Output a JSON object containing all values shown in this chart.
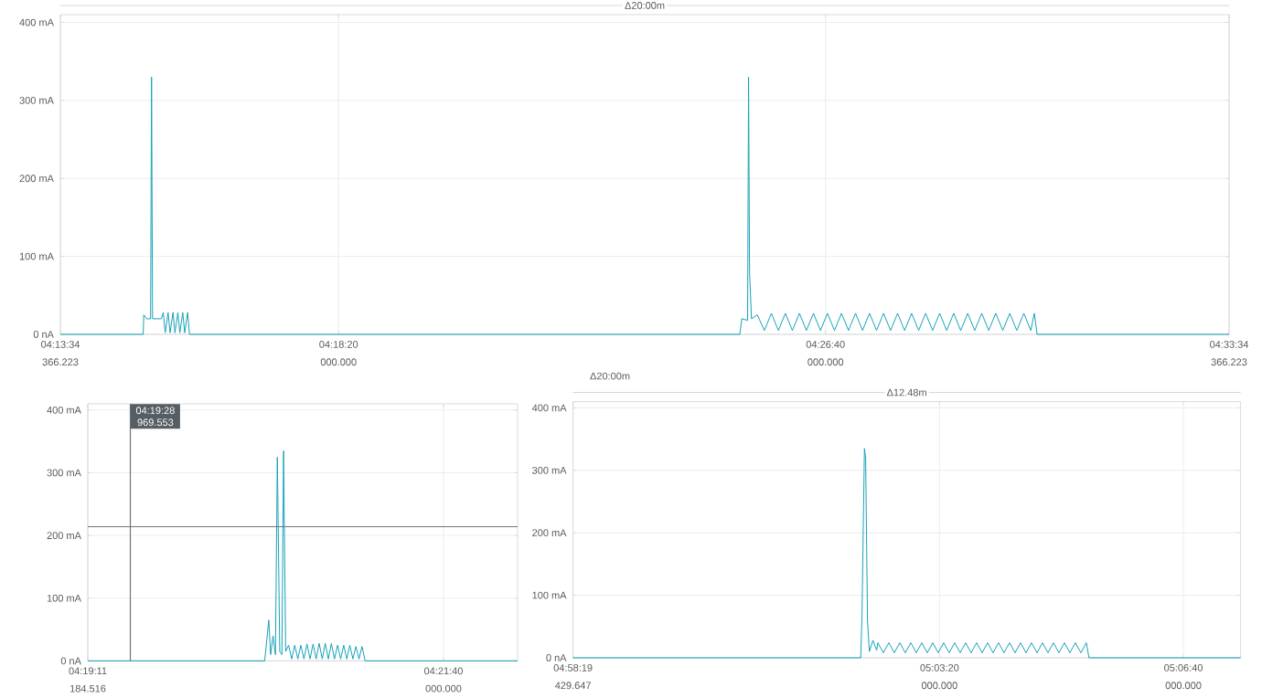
{
  "chart_data": [
    {
      "type": "line",
      "annotations": [
        "Δ20:00m",
        "366.223",
        "000.000",
        "000.000",
        "366.223"
      ],
      "grid": true,
      "xlim": [
        4.226213,
        4.559546
      ],
      "ylim": [
        0,
        410
      ],
      "xticks": [
        {
          "value": 4.226213,
          "label": "04:13:34"
        },
        {
          "value": 4.305556,
          "label": "04:18:20"
        },
        {
          "value": 4.444444,
          "label": "04:26:40"
        },
        {
          "value": 4.559546,
          "label": "04:33:34"
        }
      ],
      "yticks": [
        {
          "value": 0,
          "label": "0 nA"
        },
        {
          "value": 100,
          "label": "100 mA"
        },
        {
          "value": 200,
          "label": "200 mA"
        },
        {
          "value": 300,
          "label": "300 mA"
        },
        {
          "value": 400,
          "label": "400 mA"
        }
      ],
      "series": [
        {
          "color": "#17a2b8",
          "x": [
            4.226213,
            4.24983,
            4.25,
            4.25083,
            4.25194,
            4.25222,
            4.2525,
            4.255,
            4.25556,
            4.25611,
            4.25694,
            4.2575,
            4.25833,
            4.25889,
            4.25972,
            4.26028,
            4.26111,
            4.26167,
            4.2625,
            4.26306,
            4.42,
            4.42056,
            4.42222,
            4.4225,
            4.42278,
            4.42333,
            4.425,
            4.427,
            4.429,
            4.431,
            4.433,
            4.435,
            4.437,
            4.439,
            4.441,
            4.443,
            4.445,
            4.447,
            4.449,
            4.451,
            4.453,
            4.455,
            4.457,
            4.459,
            4.461,
            4.463,
            4.465,
            4.467,
            4.469,
            4.471,
            4.473,
            4.475,
            4.477,
            4.479,
            4.481,
            4.483,
            4.485,
            4.487,
            4.489,
            4.491,
            4.493,
            4.495,
            4.497,
            4.499,
            4.501,
            4.503,
            4.504,
            4.5048,
            4.559546
          ],
          "values": [
            0,
            0,
            25,
            20,
            20,
            330,
            20,
            20,
            28,
            2,
            28,
            2,
            28,
            2,
            28,
            2,
            28,
            2,
            28,
            0,
            0,
            20,
            18,
            330,
            80,
            20,
            25,
            5,
            27,
            5,
            27,
            5,
            27,
            5,
            27,
            5,
            27,
            5,
            27,
            5,
            27,
            5,
            27,
            5,
            27,
            5,
            27,
            5,
            27,
            5,
            27,
            5,
            27,
            5,
            27,
            5,
            27,
            5,
            27,
            5,
            27,
            5,
            27,
            5,
            27,
            5,
            27,
            0,
            0
          ]
        }
      ]
    },
    {
      "type": "line",
      "annotations": [
        "184.516",
        "000.000"
      ],
      "grid": true,
      "xlim": [
        4.319774,
        4.369722
      ],
      "ylim": [
        0,
        410
      ],
      "xticks": [
        {
          "value": 4.319774,
          "label": "04:19:11"
        },
        {
          "value": 4.361111,
          "label": "04:21:40"
        }
      ],
      "yticks": [
        {
          "value": 0,
          "label": "0 nA"
        },
        {
          "value": 100,
          "label": "100 mA"
        },
        {
          "value": 200,
          "label": "200 mA"
        },
        {
          "value": 300,
          "label": "300 mA"
        },
        {
          "value": 400,
          "label": "400 mA"
        }
      ],
      "ref_lines": [
        {
          "axis": "x",
          "value": 4.324714,
          "label": "04:19:28 969.553",
          "color": "#6c757d"
        },
        {
          "axis": "y",
          "value": 214,
          "color": "#6c757d"
        }
      ],
      "series": [
        {
          "color": "#17a2b8",
          "x": [
            4.319774,
            4.34033,
            4.3408,
            4.34102,
            4.3413,
            4.34158,
            4.3418,
            4.34208,
            4.34233,
            4.34252,
            4.34277,
            4.34311,
            4.34347,
            4.34382,
            4.34418,
            4.34453,
            4.34489,
            4.34524,
            4.3456,
            4.34595,
            4.34631,
            4.34666,
            4.34702,
            4.34737,
            4.34773,
            4.34808,
            4.34844,
            4.3488,
            4.34916,
            4.34951,
            4.34987,
            4.35022,
            4.35058,
            4.35093,
            4.35129,
            4.35164,
            4.352,
            4.369722
          ],
          "values": [
            0,
            0,
            65,
            10,
            40,
            10,
            325,
            15,
            10,
            335,
            15,
            25,
            3,
            25,
            3,
            25,
            3,
            27,
            3,
            27,
            3,
            28,
            3,
            28,
            3,
            28,
            3,
            25,
            3,
            25,
            3,
            25,
            3,
            23,
            3,
            23,
            0,
            0
          ]
        }
      ]
    },
    {
      "type": "line",
      "annotations": [
        "Δ20:00m",
        "Δ12.48m",
        "429.647",
        "000.000",
        "000.000"
      ],
      "grid": true,
      "xlim": [
        4.972064,
        5.124147
      ],
      "ylim": [
        0,
        410
      ],
      "xticks": [
        {
          "value": 4.972064,
          "label": "04:58:19"
        },
        {
          "value": 5.055556,
          "label": "05:03:20"
        },
        {
          "value": 5.111111,
          "label": "05:06:40"
        }
      ],
      "yticks": [
        {
          "value": 0,
          "label": "0 nA"
        },
        {
          "value": 100,
          "label": "100 mA"
        },
        {
          "value": 200,
          "label": "200 mA"
        },
        {
          "value": 300,
          "label": "300 mA"
        },
        {
          "value": 400,
          "label": "400 mA"
        }
      ],
      "series": [
        {
          "color": "#17a2b8",
          "x": [
            4.972064,
            5.03762,
            5.0379,
            5.03845,
            5.03873,
            5.03915,
            5.03957,
            5.0404,
            5.04123,
            5.04151,
            5.04276,
            5.04401,
            5.04526,
            5.04651,
            5.04776,
            5.04901,
            5.05026,
            5.05151,
            5.05276,
            5.05401,
            5.05526,
            5.05651,
            5.05776,
            5.05901,
            5.06026,
            5.06151,
            5.06276,
            5.06401,
            5.06526,
            5.06651,
            5.06776,
            5.06901,
            5.07026,
            5.07151,
            5.07276,
            5.07401,
            5.07526,
            5.07651,
            5.07776,
            5.07901,
            5.08026,
            5.08151,
            5.08276,
            5.08401,
            5.08526,
            5.08651,
            5.08776,
            5.08901,
            5.0896,
            5.124147
          ],
          "values": [
            0,
            0,
            70,
            335,
            320,
            60,
            10,
            28,
            12,
            24,
            8,
            24,
            8,
            24,
            8,
            24,
            8,
            24,
            8,
            24,
            8,
            24,
            8,
            24,
            8,
            24,
            8,
            24,
            8,
            24,
            8,
            24,
            8,
            24,
            8,
            24,
            8,
            24,
            8,
            24,
            8,
            24,
            8,
            24,
            8,
            24,
            8,
            24,
            0,
            0
          ]
        }
      ]
    }
  ]
}
